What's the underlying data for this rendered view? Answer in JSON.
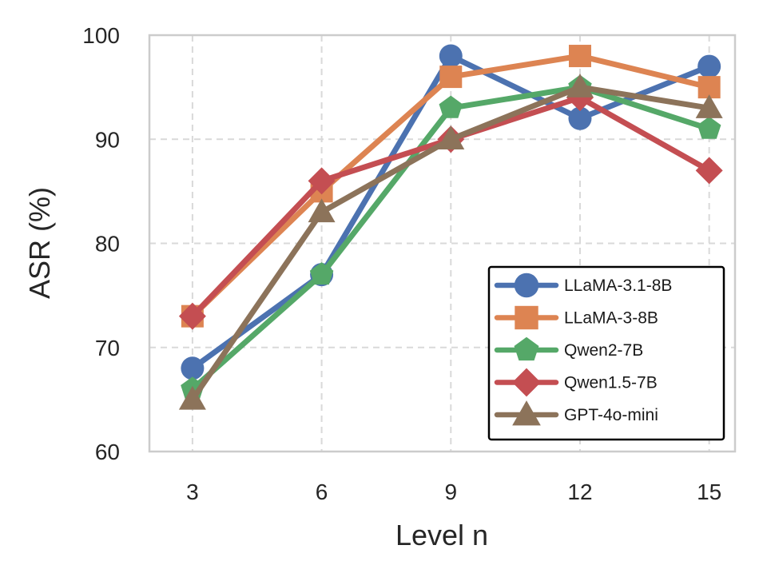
{
  "chart_data": {
    "type": "line",
    "title": "",
    "xlabel": "Level n",
    "ylabel": "ASR (%)",
    "x": [
      3,
      6,
      9,
      12,
      15
    ],
    "xticks": [
      "3",
      "6",
      "9",
      "12",
      "15"
    ],
    "yticks": [
      "60",
      "70",
      "80",
      "90",
      "100"
    ],
    "ylim": [
      60,
      100
    ],
    "grid": true,
    "legend_position": "lower-right",
    "series": [
      {
        "name": "LLaMA-3.1-8B",
        "values": [
          68,
          77,
          98,
          92,
          97
        ],
        "color": "#4c72b0",
        "marker": "circle"
      },
      {
        "name": "LLaMA-3-8B",
        "values": [
          73,
          85,
          96,
          98,
          95
        ],
        "color": "#dd8452",
        "marker": "square"
      },
      {
        "name": "Qwen2-7B",
        "values": [
          66,
          77,
          93,
          95,
          91
        ],
        "color": "#55a868",
        "marker": "pentagon"
      },
      {
        "name": "Qwen1.5-7B",
        "values": [
          73,
          86,
          90,
          94,
          87
        ],
        "color": "#c44e52",
        "marker": "diamond"
      },
      {
        "name": "GPT-4o-mini",
        "values": [
          65,
          83,
          90,
          95,
          93
        ],
        "color": "#8c735a",
        "marker": "triangle"
      }
    ]
  }
}
